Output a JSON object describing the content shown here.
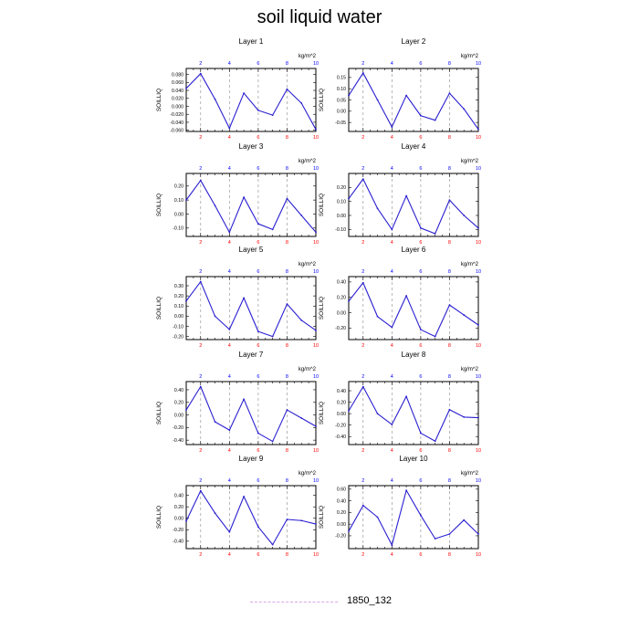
{
  "title": "soil liquid water",
  "legend": {
    "label": "1850_132",
    "color": "#d7a6e6"
  },
  "colors": {
    "line": "#2a1fd0",
    "bottom_ticks": "#ff0000",
    "top_ticks": "#0000ff",
    "grid": "#999999"
  },
  "chart_data": [
    {
      "type": "line",
      "title": "Layer 1",
      "unit": "kg/m^2",
      "ylabel": "SOILLIQ",
      "xlim": [
        1,
        10
      ],
      "ylim": [
        -0.063,
        0.095
      ],
      "xticks": [
        "2",
        "4",
        "6",
        "8",
        "10"
      ],
      "yticks": [
        "0.080",
        "0.060",
        "0.040",
        "0.020",
        "0.000",
        "-0.020",
        "-0.040",
        "-0.060"
      ],
      "ytick_values": [
        0.08,
        0.06,
        0.04,
        0.02,
        0.0,
        -0.02,
        -0.04,
        -0.06
      ],
      "x": [
        1,
        2,
        3,
        4,
        5,
        6,
        7,
        8,
        9,
        10
      ],
      "values": [
        0.045,
        0.082,
        0.018,
        -0.055,
        0.033,
        -0.01,
        -0.022,
        0.043,
        0.008,
        -0.058
      ]
    },
    {
      "type": "line",
      "title": "Layer 2",
      "unit": "kg/m^2",
      "ylabel": "SOILLIQ",
      "xlim": [
        1,
        10
      ],
      "ylim": [
        -0.09,
        0.19
      ],
      "xticks": [
        "2",
        "4",
        "6",
        "8",
        "10"
      ],
      "yticks": [
        "0.15",
        "0.10",
        "0.05",
        "0.00",
        "-0.05"
      ],
      "ytick_values": [
        0.15,
        0.1,
        0.05,
        0.0,
        -0.05
      ],
      "x": [
        1,
        2,
        3,
        4,
        5,
        6,
        7,
        8,
        9,
        10
      ],
      "values": [
        0.07,
        0.17,
        0.05,
        -0.07,
        0.07,
        -0.02,
        -0.04,
        0.08,
        0.01,
        -0.08
      ]
    },
    {
      "type": "line",
      "title": "Layer 3",
      "unit": "kg/m^2",
      "ylabel": "SOILLIQ",
      "xlim": [
        1,
        10
      ],
      "ylim": [
        -0.16,
        0.29
      ],
      "xticks": [
        "2",
        "4",
        "6",
        "8",
        "10"
      ],
      "yticks": [
        "0.20",
        "0.10",
        "0.00",
        "-0.10"
      ],
      "ytick_values": [
        0.2,
        0.1,
        0.0,
        -0.1
      ],
      "x": [
        1,
        2,
        3,
        4,
        5,
        6,
        7,
        8,
        9,
        10
      ],
      "values": [
        0.1,
        0.24,
        0.06,
        -0.13,
        0.12,
        -0.07,
        -0.11,
        0.11,
        -0.01,
        -0.13
      ]
    },
    {
      "type": "line",
      "title": "Layer 4",
      "unit": "kg/m^2",
      "ylabel": "SOILLIQ",
      "xlim": [
        1,
        10
      ],
      "ylim": [
        -0.15,
        0.3
      ],
      "xticks": [
        "2",
        "4",
        "6",
        "8",
        "10"
      ],
      "yticks": [
        "0.20",
        "0.10",
        "0.00",
        "-0.10"
      ],
      "ytick_values": [
        0.2,
        0.1,
        0.0,
        -0.1
      ],
      "x": [
        1,
        2,
        3,
        4,
        5,
        6,
        7,
        8,
        9,
        10
      ],
      "values": [
        0.12,
        0.26,
        0.05,
        -0.1,
        0.14,
        -0.09,
        -0.13,
        0.11,
        0.0,
        -0.09
      ]
    },
    {
      "type": "line",
      "title": "Layer 5",
      "unit": "kg/m^2",
      "ylabel": "SOILLIQ",
      "xlim": [
        1,
        10
      ],
      "ylim": [
        -0.23,
        0.39
      ],
      "xticks": [
        "2",
        "4",
        "6",
        "8",
        "10"
      ],
      "yticks": [
        "0.30",
        "0.20",
        "0.10",
        "0.00",
        "-0.10",
        "-0.20"
      ],
      "ytick_values": [
        0.3,
        0.2,
        0.1,
        0.0,
        -0.1,
        -0.2
      ],
      "x": [
        1,
        2,
        3,
        4,
        5,
        6,
        7,
        8,
        9,
        10
      ],
      "values": [
        0.15,
        0.34,
        0.0,
        -0.13,
        0.18,
        -0.15,
        -0.2,
        0.12,
        -0.04,
        -0.14
      ]
    },
    {
      "type": "line",
      "title": "Layer 6",
      "unit": "kg/m^2",
      "ylabel": "SOILLIQ",
      "xlim": [
        1,
        10
      ],
      "ylim": [
        -0.35,
        0.47
      ],
      "xticks": [
        "2",
        "4",
        "6",
        "8",
        "10"
      ],
      "yticks": [
        "0.40",
        "0.20",
        "0.00",
        "-0.20"
      ],
      "ytick_values": [
        0.4,
        0.2,
        0.0,
        -0.2
      ],
      "x": [
        1,
        2,
        3,
        4,
        5,
        6,
        7,
        8,
        9,
        10
      ],
      "values": [
        0.15,
        0.39,
        -0.05,
        -0.19,
        0.22,
        -0.22,
        -0.31,
        0.1,
        -0.03,
        -0.16
      ]
    },
    {
      "type": "line",
      "title": "Layer 7",
      "unit": "kg/m^2",
      "ylabel": "SOILLIQ",
      "xlim": [
        1,
        10
      ],
      "ylim": [
        -0.47,
        0.53
      ],
      "xticks": [
        "2",
        "4",
        "6",
        "8",
        "10"
      ],
      "yticks": [
        "0.40",
        "0.20",
        "0.00",
        "-0.20",
        "-0.40"
      ],
      "ytick_values": [
        0.4,
        0.2,
        0.0,
        -0.2,
        -0.4
      ],
      "x": [
        1,
        2,
        3,
        4,
        5,
        6,
        7,
        8,
        9,
        10
      ],
      "values": [
        0.08,
        0.45,
        -0.11,
        -0.24,
        0.25,
        -0.29,
        -0.42,
        0.08,
        -0.05,
        -0.18
      ]
    },
    {
      "type": "line",
      "title": "Layer 8",
      "unit": "kg/m^2",
      "ylabel": "SOILLIQ",
      "xlim": [
        1,
        10
      ],
      "ylim": [
        -0.54,
        0.56
      ],
      "xticks": [
        "2",
        "4",
        "6",
        "8",
        "10"
      ],
      "yticks": [
        "0.40",
        "0.20",
        "0.00",
        "-0.20",
        "-0.40"
      ],
      "ytick_values": [
        0.4,
        0.2,
        0.0,
        -0.2,
        -0.4
      ],
      "x": [
        1,
        2,
        3,
        4,
        5,
        6,
        7,
        8,
        9,
        10
      ],
      "values": [
        0.05,
        0.47,
        0.0,
        -0.19,
        0.3,
        -0.34,
        -0.48,
        0.07,
        -0.06,
        -0.07
      ]
    },
    {
      "type": "line",
      "title": "Layer 9",
      "unit": "kg/m^2",
      "ylabel": "SOILLIQ",
      "xlim": [
        1,
        10
      ],
      "ylim": [
        -0.53,
        0.57
      ],
      "xticks": [
        "2",
        "4",
        "6",
        "8",
        "10"
      ],
      "yticks": [
        "0.40",
        "0.20",
        "0.00",
        "-0.20",
        "-0.40"
      ],
      "ytick_values": [
        0.4,
        0.2,
        0.0,
        -0.2,
        -0.4
      ],
      "x": [
        1,
        2,
        3,
        4,
        5,
        6,
        7,
        8,
        9,
        10
      ],
      "values": [
        -0.05,
        0.48,
        0.09,
        -0.24,
        0.38,
        -0.15,
        -0.46,
        -0.02,
        -0.04,
        -0.1
      ]
    },
    {
      "type": "line",
      "title": "Layer 10",
      "unit": "kg/m^2",
      "ylabel": "SOILLIQ",
      "xlim": [
        1,
        10
      ],
      "ylim": [
        -0.42,
        0.66
      ],
      "xticks": [
        "2",
        "4",
        "6",
        "8",
        "10"
      ],
      "yticks": [
        "0.60",
        "0.40",
        "0.20",
        "0.00",
        "-0.20"
      ],
      "ytick_values": [
        0.6,
        0.4,
        0.2,
        0.0,
        -0.2
      ],
      "x": [
        1,
        2,
        3,
        4,
        5,
        6,
        7,
        8,
        9,
        10
      ],
      "values": [
        -0.12,
        0.32,
        0.12,
        -0.36,
        0.58,
        0.15,
        -0.25,
        -0.17,
        0.07,
        -0.17
      ]
    }
  ]
}
